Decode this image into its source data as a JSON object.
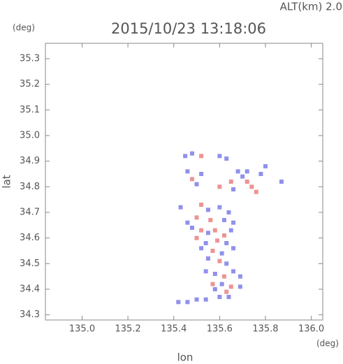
{
  "chart_data": {
    "type": "scatter",
    "title": "2015/10/23 13:18:06",
    "subtitle": "ALT(km) 2.0",
    "y_unit": "(deg)",
    "x_unit": "(deg)",
    "y_label": "lat",
    "x_label": "lon",
    "xlim": [
      134.84,
      136.05
    ],
    "ylim": [
      34.28,
      35.36
    ],
    "xticks": [
      {
        "value": 135,
        "label": "135.0"
      },
      135.2,
      135.4,
      135.6,
      135.8,
      {
        "value": 136,
        "label": "136.0"
      }
    ],
    "yticks": [
      34.3,
      34.4,
      34.5,
      34.6,
      34.7,
      34.8,
      34.9,
      {
        "value": 35,
        "label": "35.0"
      },
      35.1,
      35.2,
      35.3
    ],
    "x": [
      135.45,
      135.48,
      135.52,
      135.6,
      135.63,
      135.46,
      135.48,
      135.5,
      135.52,
      135.65,
      135.68,
      135.7,
      135.72,
      135.74,
      135.76,
      135.72,
      135.78,
      135.66,
      135.6,
      135.87,
      135.8,
      135.43,
      135.52,
      135.55,
      135.6,
      135.64,
      135.5,
      135.56,
      135.62,
      135.66,
      135.46,
      135.48,
      135.52,
      135.55,
      135.58,
      135.62,
      135.65,
      135.5,
      135.54,
      135.59,
      135.63,
      135.52,
      135.57,
      135.61,
      135.66,
      135.55,
      135.6,
      135.63,
      135.54,
      135.58,
      135.62,
      135.66,
      135.69,
      135.57,
      135.61,
      135.65,
      135.69,
      135.63,
      135.58,
      135.42,
      135.46,
      135.5,
      135.54,
      135.6,
      135.64
    ],
    "y": [
      34.92,
      34.93,
      34.92,
      34.92,
      34.91,
      34.86,
      34.83,
      34.81,
      34.85,
      34.82,
      34.86,
      34.84,
      34.82,
      34.8,
      34.78,
      34.86,
      34.85,
      34.79,
      34.8,
      34.82,
      34.88,
      34.72,
      34.73,
      34.71,
      34.72,
      34.7,
      34.68,
      34.67,
      34.67,
      34.66,
      34.66,
      34.64,
      34.63,
      34.62,
      34.63,
      34.61,
      34.63,
      34.6,
      34.58,
      34.59,
      34.58,
      34.56,
      34.55,
      34.54,
      34.56,
      34.52,
      34.51,
      34.5,
      34.47,
      34.46,
      34.45,
      34.47,
      34.45,
      34.42,
      34.42,
      34.41,
      34.41,
      34.39,
      34.4,
      34.35,
      34.35,
      34.36,
      34.36,
      34.37,
      34.37
    ],
    "colors": [
      "#7474e8",
      "#7474e8",
      "#e87878",
      "#7474e8",
      "#7474e8",
      "#7474e8",
      "#e87878",
      "#7474e8",
      "#7474e8",
      "#e87878",
      "#7474e8",
      "#7474e8",
      "#e87878",
      "#e87878",
      "#e87878",
      "#7474e8",
      "#7474e8",
      "#7474e8",
      "#e87878",
      "#7474e8",
      "#7474e8",
      "#7474e8",
      "#e87878",
      "#7474e8",
      "#7474e8",
      "#7474e8",
      "#e87878",
      "#e87878",
      "#7474e8",
      "#7474e8",
      "#7474e8",
      "#7474e8",
      "#e87878",
      "#7474e8",
      "#e87878",
      "#e87878",
      "#7474e8",
      "#e87878",
      "#7474e8",
      "#e87878",
      "#7474e8",
      "#7474e8",
      "#e87878",
      "#7474e8",
      "#7474e8",
      "#7474e8",
      "#e87878",
      "#7474e8",
      "#7474e8",
      "#7474e8",
      "#e87878",
      "#7474e8",
      "#7474e8",
      "#e87878",
      "#7474e8",
      "#e87878",
      "#7474e8",
      "#e87878",
      "#7474e8",
      "#7474e8",
      "#7474e8",
      "#7474e8",
      "#7474e8",
      "#7474e8",
      "#7474e8"
    ]
  }
}
